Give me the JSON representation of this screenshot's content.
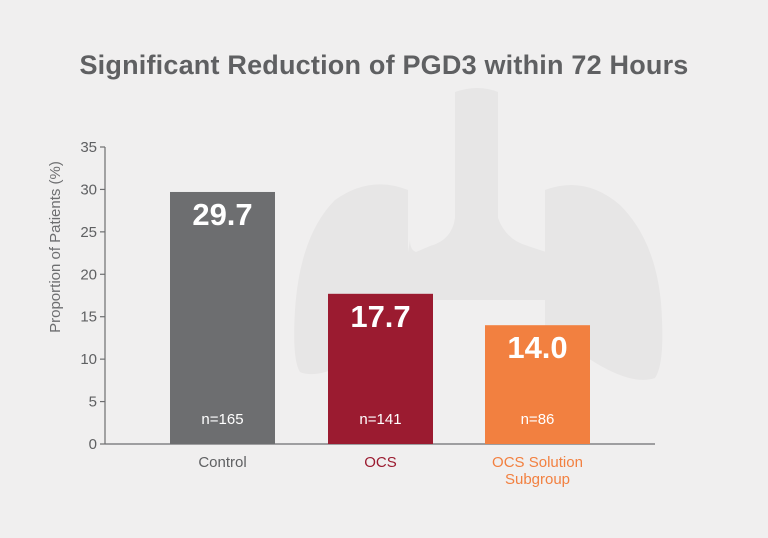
{
  "chart_data": {
    "type": "bar",
    "title": "Significant Reduction of PGD3 within 72 Hours",
    "ylabel": "Proportion of Patients (%)",
    "xlabel": "",
    "ylim": [
      0,
      35
    ],
    "yticks": [
      0,
      5,
      10,
      15,
      20,
      25,
      30,
      35
    ],
    "categories": [
      "Control",
      "OCS",
      "OCS Solution Subgroup"
    ],
    "category_lines": [
      [
        "Control"
      ],
      [
        "OCS"
      ],
      [
        "OCS Solution",
        "Subgroup"
      ]
    ],
    "values": [
      29.7,
      17.7,
      14.0
    ],
    "value_labels": [
      "29.7",
      "17.7",
      "14.0"
    ],
    "n_labels": [
      "n=165",
      "n=141",
      "n=86"
    ],
    "bar_colors": [
      "#6d6e70",
      "#9b1b30",
      "#f28040"
    ],
    "label_colors": [
      "#5f6062",
      "#9b1b30",
      "#f28040"
    ]
  },
  "colors": {
    "background": "#f0efef",
    "axis": "#6d6e70",
    "watermark": "#e6e5e5"
  },
  "watermark_icon": "lungs-icon"
}
